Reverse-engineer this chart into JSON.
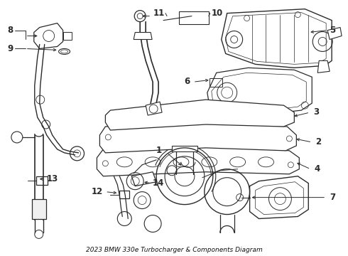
{
  "title": "2023 BMW 330e Turbocharger & Components Diagram",
  "bg_color": "#ffffff",
  "line_color": "#2a2a2a",
  "label_color": "#111111",
  "label_fontsize": 8.5,
  "title_fontsize": 6.5,
  "fig_width": 4.9,
  "fig_height": 3.6,
  "dpi": 100
}
